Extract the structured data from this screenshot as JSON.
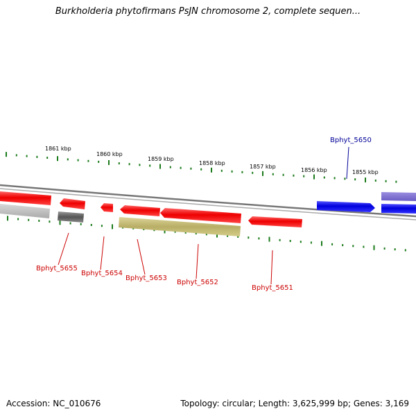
{
  "title": "Burkholderia phytofirmans PsJN chromosome 2, complete sequen...",
  "footer": {
    "accession": "Accession: NC_010676",
    "summary": "Topology: circular; Length: 3,625,999 bp; Genes: 3,169"
  },
  "scale_labels": [
    "1861 kbp",
    "1860 kbp",
    "1859 kbp",
    "1858 kbp",
    "1857 kbp",
    "1856 kbp",
    "1855 kbp"
  ],
  "gene_labels": [
    {
      "name": "Bphyt_5655",
      "color": "#cc0000"
    },
    {
      "name": "Bphyt_5654",
      "color": "#cc0000"
    },
    {
      "name": "Bphyt_5653",
      "color": "#cc0000"
    },
    {
      "name": "Bphyt_5652",
      "color": "#cc0000"
    },
    {
      "name": "Bphyt_5651",
      "color": "#cc0000"
    },
    {
      "name": "Bphyt_5650",
      "color": "#000099"
    }
  ],
  "colors": {
    "forward_gene": "#ff0000",
    "blue_gene": "#0000ee",
    "purple_gene": "#7766cc",
    "grey_gene": "#666666",
    "light_grey_gene": "#bbbbbb",
    "olive_gene": "#c8c07a",
    "tick": "#1a7a1a",
    "backbone": "#888888"
  }
}
